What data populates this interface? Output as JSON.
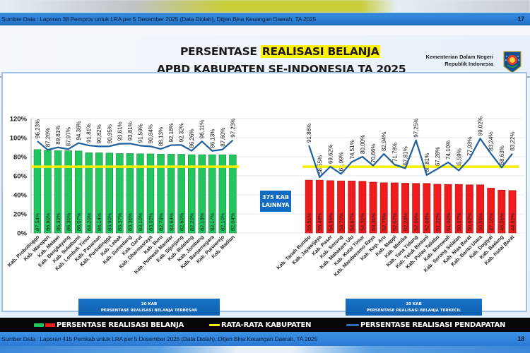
{
  "top_source": {
    "text": "Sumber Data : Laporan 38 Pemprov untuk LRA per 5 Desember 2025 (Data Diolah),  Ditjen Bina Keuangan Daerah,  TA 2025",
    "page": "17"
  },
  "header": {
    "title_line1_prefix": "PERSENTASE ",
    "title_line1_highlight": "REALISASI BELANJA",
    "title_line2": "APBD KABUPATEN SE-INDONESIA TA 2025",
    "ministry_line1": "Kementerian Dalam Negeri",
    "ministry_line2": "Republik Indonesia",
    "average_label": "Rata-Rata Kab = 69,57%"
  },
  "middle_box": {
    "line1": "375 KAB",
    "line2": "LAINNYA"
  },
  "captions": {
    "left_line1": "20 KAB",
    "left_line2": "PERSENTASE REALISASI BELANJA TERBESAR",
    "right_line1": "20 KAB",
    "right_line2": "PERSENTASE REALISASI BELANJA TERKECIL"
  },
  "legend": {
    "item1": "PERSENTASE REALISASI BELANJA",
    "item2": "RATA-RATA KABUPATEN",
    "item3": "PERSENTASE REALISASI PENDAPATAN"
  },
  "bottom_source": {
    "text": "Sumber Data : Laporan 415 Pemkab untuk LRA per 5 Desember 2025 (Data Diolah),  Ditjen Bina Keuangan Daerah,  TA 2025",
    "page": "18"
  },
  "colors": {
    "top_bar": "#22c55e",
    "bottom_bar": "#ee1c1c",
    "average_line": "#f5f000",
    "revenue_line": "#1f5f9e",
    "caption_blue": "#1467bd"
  },
  "chart_data": {
    "type": "bar",
    "title": "PERSENTASE REALISASI BELANJA APBD KABUPATEN SE-INDONESIA TA 2025",
    "yaxis_ticks": [
      "0%",
      "20%",
      "40%",
      "60%",
      "80%",
      "100%",
      "120%"
    ],
    "ylim": [
      0,
      120
    ],
    "grid": true,
    "average": 69.57,
    "average_label": "Rata-Rata Kab = 69,57%",
    "legend": [
      "PERSENTASE REALISASI BELANJA",
      "RATA-RATA KABUPATEN",
      "PERSENTASE REALISASI PENDAPATAN"
    ],
    "legend_position": "bottom",
    "groups": [
      {
        "name": "20 KAB PERSENTASE REALISASI BELANJA TERBESAR",
        "bar_color": "#22c55e",
        "categories": [
          "Kab. Probolinggo",
          "Kab. Waropen",
          "Kab. Melawi",
          "Kab. Bengkayang",
          "Kab. Sukabumi",
          "Kab. Lombok Timur",
          "Kab. Pasaman",
          "Kab. Purbalingga",
          "Kab. Lebak",
          "Kab. Sumedang",
          "Kab. Garut",
          "Kab. Dharmasraya",
          "Kab. Buru",
          "Kab. Polewali Mandar",
          "Kab. Sijunjung",
          "Kab. Buleleng",
          "Kab. Jombang",
          "Kab. Banjarnegara",
          "Kab. Purworejo",
          "Kab. Madiun"
        ],
        "belanja": [
          87.54,
          86.8,
          86.32,
          86.3,
          86.07,
          84.2,
          84.14,
          83.9,
          83.37,
          83.36,
          83.1,
          83.02,
          82.79,
          82.64,
          82.6,
          82.2,
          82.18,
          82.17,
          82.1,
          82.04
        ],
        "belanja_labels": [
          "87,54%",
          "86,80%",
          "86,32%",
          "86,30%",
          "86,07%",
          "84,20%",
          "84,14%",
          "83,90%",
          "83,37%",
          "83,36%",
          "83,10%",
          "83,02%",
          "82,79%",
          "82,64%",
          "82,60%",
          "82,20%",
          "82,18%",
          "82,17%",
          "82,10%",
          "82,04%"
        ],
        "pendapatan": [
          96.23,
          87.26,
          89.81,
          87.97,
          94.36,
          91.81,
          90.82,
          90.95,
          93.61,
          93.81,
          91.59,
          90.84,
          88.13,
          92.18,
          92.32,
          86.26,
          96.11,
          86.13,
          87.6,
          97.23
        ],
        "pendapatan_labels": [
          "96,23%",
          "87,26%",
          "89,81%",
          "87,97%",
          "94,36%",
          "91,81%",
          "90,82%",
          "90,95%",
          "93,61%",
          "93,81%",
          "91,59%",
          "90,84%",
          "88,13%",
          "92,18%",
          "92,32%",
          "86,26%",
          "96,11%",
          "86,13%",
          "87,60%",
          "97,23%"
        ]
      },
      {
        "name": "20 KAB PERSENTASE REALISASI BELANJA TERKECIL",
        "bar_color": "#ee1c1c",
        "categories": [
          "Kab. Tanah Bumbu",
          "Kab. Jayawijaya",
          "Kab. Paser",
          "Kab. Sorong",
          "Kab. Mahakam Ulu",
          "Kab. Kutai Timur",
          "Kab. Mamberamo Raya",
          "Kab. Kep. Aru",
          "Kab. Mappi",
          "Kab. Mimika",
          "Kab. Tana Tidung",
          "Kab. Teluk Bintuni",
          "Kab. Pulau Taliabu",
          "Kab. Morowali",
          "Kab. Sorong Selatan",
          "Kab. Nias Barat",
          "Kab. Barito Utara",
          "Kab. Dogiyai",
          "Kab. Badung",
          "Kab. Kutai Barat"
        ],
        "belanja": [
          55.51,
          55.48,
          54.95,
          54.7,
          54.67,
          54.32,
          53.36,
          52.75,
          52.67,
          52.28,
          52.09,
          52.08,
          51.22,
          51.02,
          50.97,
          50.62,
          50.59,
          47.1,
          45.06,
          44.62
        ],
        "belanja_labels": [
          "55,51%",
          "55,48%",
          "54,95%",
          "54,70%",
          "54,67%",
          "54,32%",
          "53,36%",
          "52,75%",
          "52,67%",
          "52,28%",
          "52,09%",
          "52,08%",
          "51,22%",
          "51,02%",
          "50,97%",
          "50,62%",
          "50,59%",
          "47,10%",
          "45,06%",
          "44,62%"
        ],
        "pendapatan": [
          91.86,
          58.55,
          69.62,
          61.99,
          74.51,
          80.0,
          70.66,
          82.94,
          71.78,
          67.81,
          97.25,
          60.81,
          67.28,
          74.1,
          65.59,
          77.93,
          99.02,
          83.24,
          68.63,
          83.22
        ],
        "pendapatan_labels": [
          "91,86%",
          "58,55%",
          "69,62%",
          "61,99%",
          "74,51%",
          "80,00%",
          "70,66%",
          "82,94%",
          "71,78%",
          "67,81%",
          "97,25%",
          "60,81%",
          "67,28%",
          "74,10%",
          "65,59%",
          "77,93%",
          "99,02%",
          "83,24%",
          "68,63%",
          "83,22%"
        ]
      }
    ],
    "middle_note": "375 KAB LAINNYA"
  }
}
